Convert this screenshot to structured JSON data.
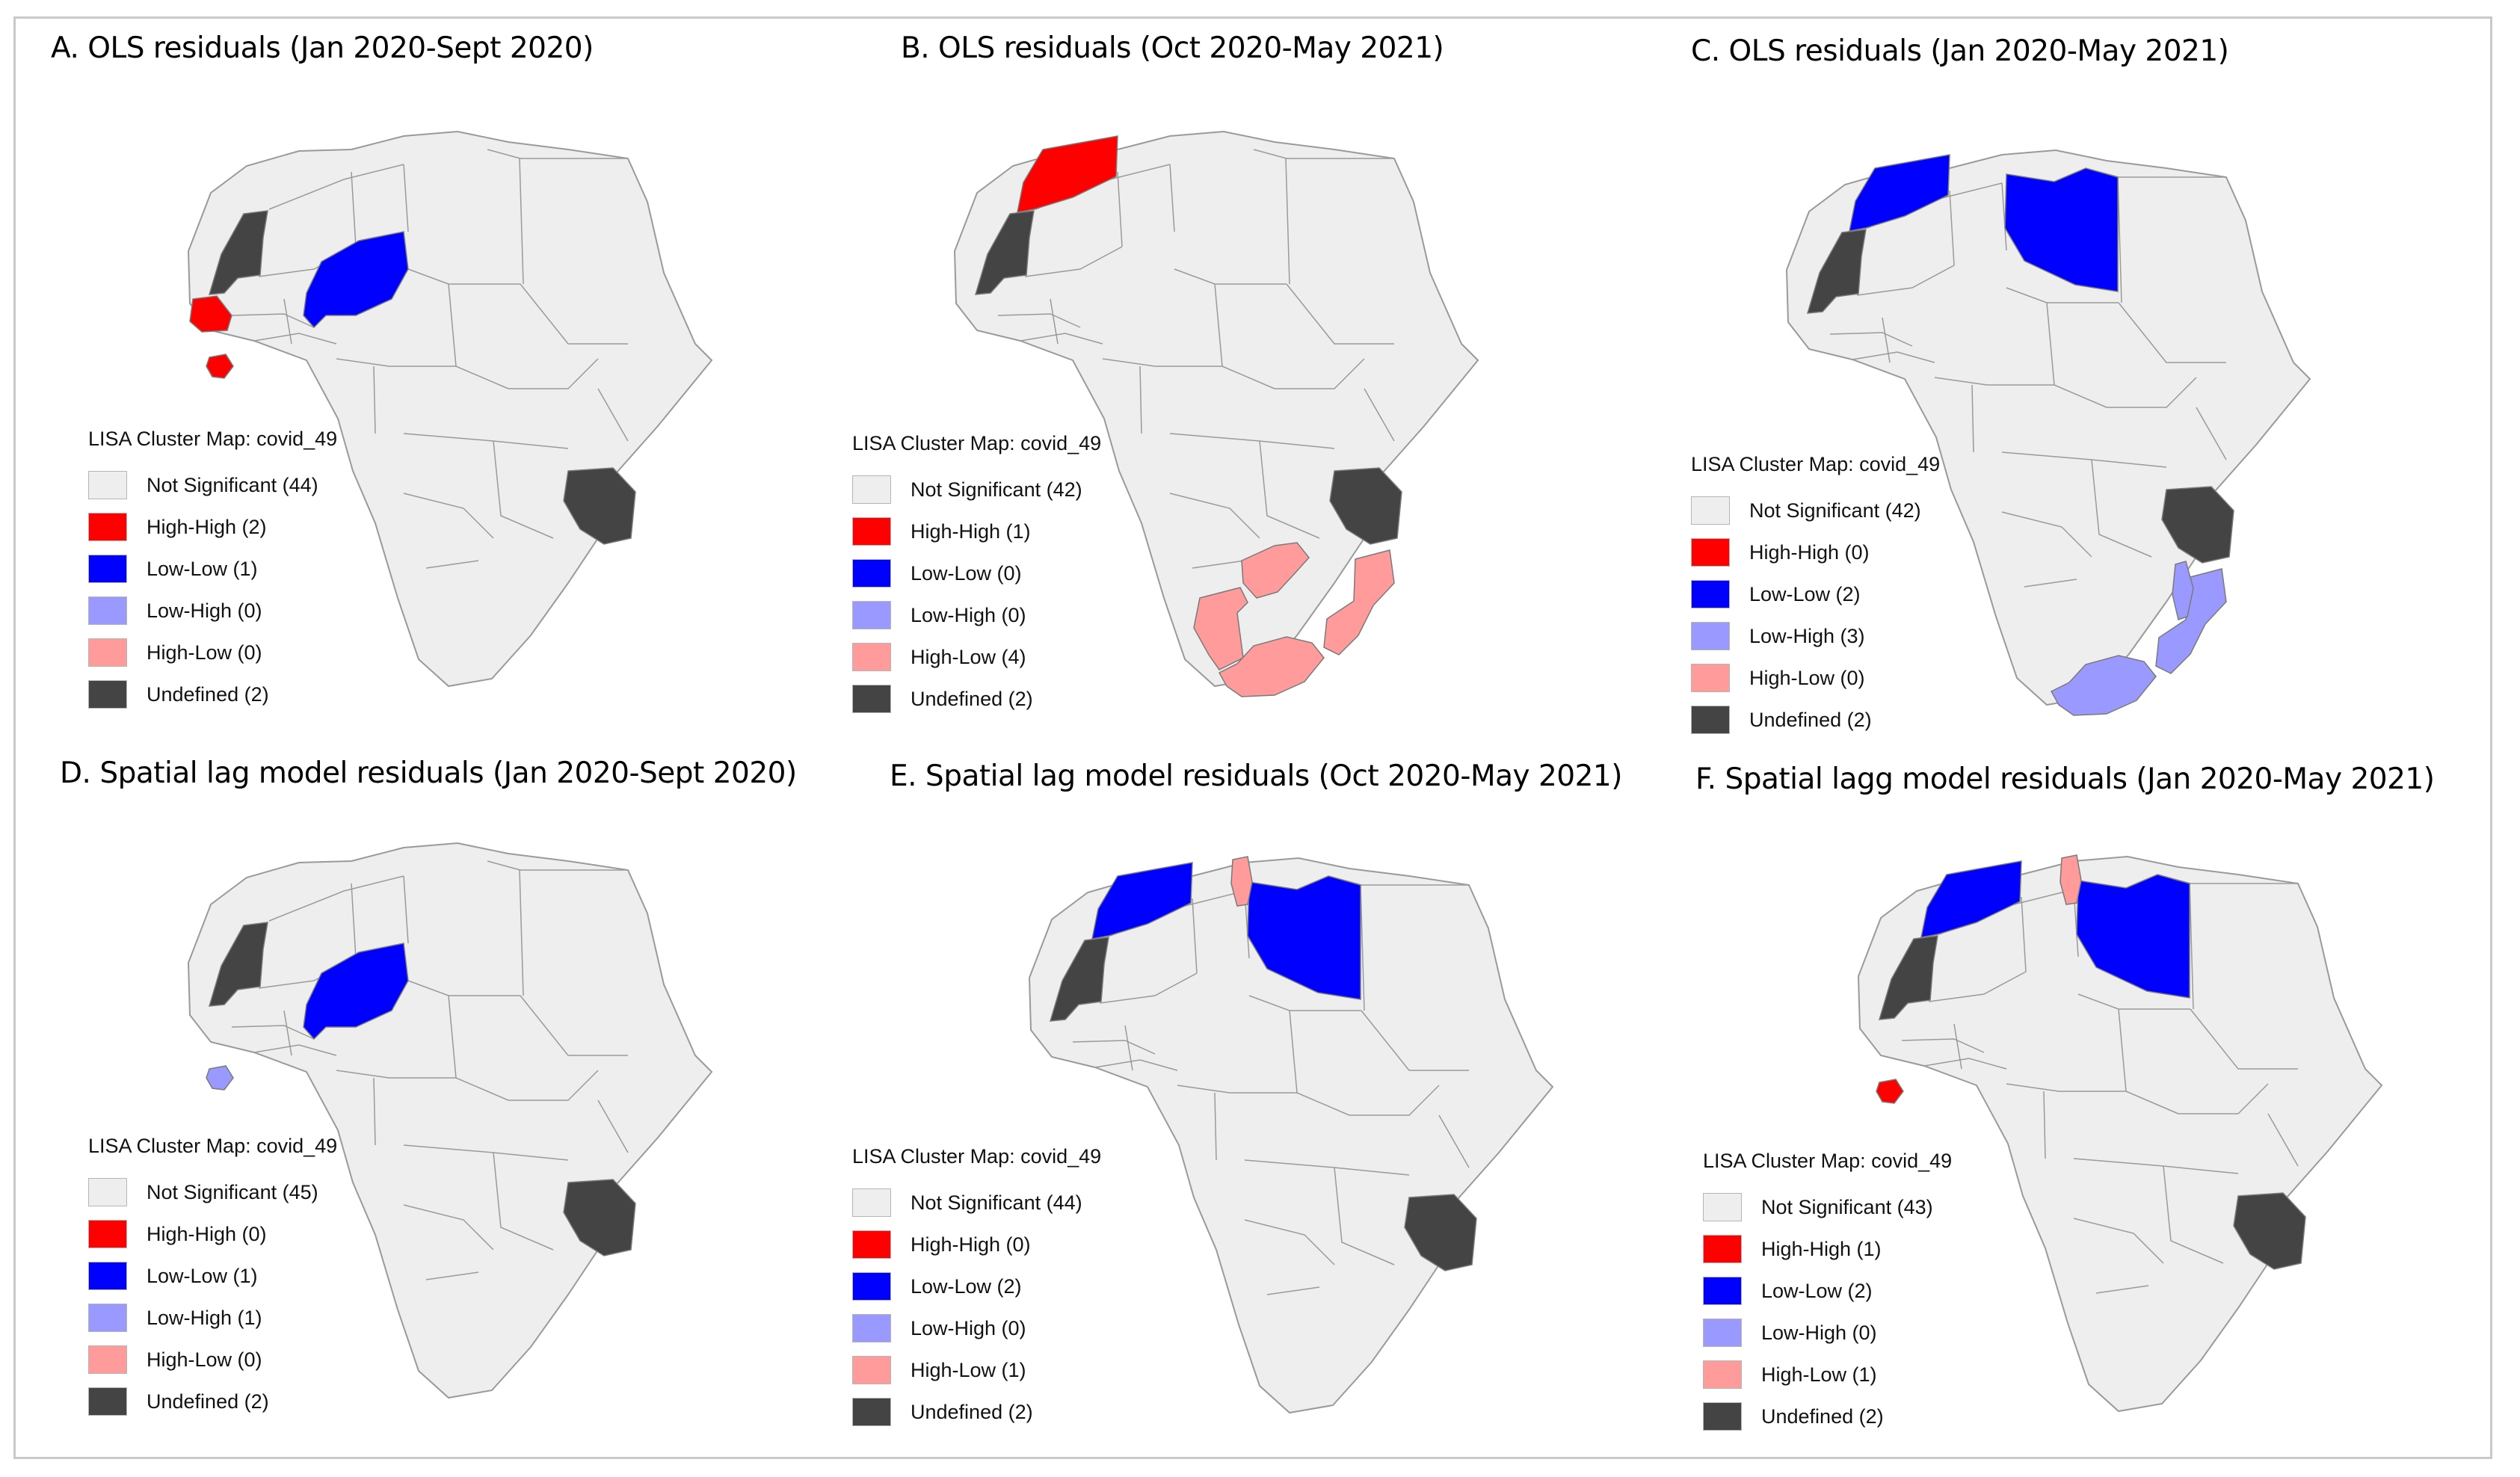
{
  "colors": {
    "not_significant": "#eeeeee",
    "high_high": "#ff0000",
    "low_low": "#0000ff",
    "low_high": "#9999ff",
    "high_low": "#ff9b9b",
    "undefined": "#444444",
    "border": "#9a9a9a"
  },
  "panels": [
    {
      "title": "A. OLS residuals (Jan 2020-Sept 2020)",
      "legend_title": "LISA Cluster Map: covid_49",
      "legend": [
        {
          "label": "Not Significant (44)",
          "category": "not_significant"
        },
        {
          "label": "High-High (2)",
          "category": "high_high"
        },
        {
          "label": "Low-Low (1)",
          "category": "low_low"
        },
        {
          "label": "Low-High (0)",
          "category": "low_high"
        },
        {
          "label": "High-Low (0)",
          "category": "high_low"
        },
        {
          "label": "Undefined (2)",
          "category": "undefined"
        }
      ],
      "regions": [
        {
          "country": "Western Sahara",
          "category": "undefined"
        },
        {
          "country": "Tanzania",
          "category": "undefined"
        },
        {
          "country": "Senegal",
          "category": "high_high"
        },
        {
          "country": "Sierra Leone",
          "category": "high_high"
        },
        {
          "country": "Niger",
          "category": "low_low"
        }
      ]
    },
    {
      "title": "B. OLS residuals (Oct 2020-May 2021)",
      "legend_title": "LISA Cluster Map: covid_49",
      "legend": [
        {
          "label": "Not Significant (42)",
          "category": "not_significant"
        },
        {
          "label": "High-High (1)",
          "category": "high_high"
        },
        {
          "label": "Low-Low (0)",
          "category": "low_low"
        },
        {
          "label": "Low-High (0)",
          "category": "low_high"
        },
        {
          "label": "High-Low (4)",
          "category": "high_low"
        },
        {
          "label": "Undefined (2)",
          "category": "undefined"
        }
      ],
      "regions": [
        {
          "country": "Western Sahara",
          "category": "undefined"
        },
        {
          "country": "Tanzania",
          "category": "undefined"
        },
        {
          "country": "Morocco",
          "category": "high_high"
        },
        {
          "country": "Zambia",
          "category": "high_low"
        },
        {
          "country": "Mozambique",
          "category": "high_low"
        },
        {
          "country": "Namibia",
          "category": "high_low"
        },
        {
          "country": "South Africa",
          "category": "high_low"
        }
      ]
    },
    {
      "title": "C. OLS residuals (Jan 2020-May 2021)",
      "legend_title": "LISA Cluster Map: covid_49",
      "legend": [
        {
          "label": "Not Significant (42)",
          "category": "not_significant"
        },
        {
          "label": "High-High (0)",
          "category": "high_high"
        },
        {
          "label": "Low-Low (2)",
          "category": "low_low"
        },
        {
          "label": "Low-High (3)",
          "category": "low_high"
        },
        {
          "label": "High-Low (0)",
          "category": "high_low"
        },
        {
          "label": "Undefined (2)",
          "category": "undefined"
        }
      ],
      "regions": [
        {
          "country": "Western Sahara",
          "category": "undefined"
        },
        {
          "country": "Tanzania",
          "category": "undefined"
        },
        {
          "country": "Morocco",
          "category": "low_low"
        },
        {
          "country": "Libya",
          "category": "low_low"
        },
        {
          "country": "Mozambique",
          "category": "low_high"
        },
        {
          "country": "Malawi",
          "category": "low_high"
        },
        {
          "country": "South Africa",
          "category": "low_high"
        }
      ]
    },
    {
      "title": "D. Spatial lag model residuals (Jan 2020-Sept 2020)",
      "legend_title": "LISA Cluster Map: covid_49",
      "legend": [
        {
          "label": "Not Significant (45)",
          "category": "not_significant"
        },
        {
          "label": "High-High (0)",
          "category": "high_high"
        },
        {
          "label": "Low-Low (1)",
          "category": "low_low"
        },
        {
          "label": "Low-High (1)",
          "category": "low_high"
        },
        {
          "label": "High-Low (0)",
          "category": "high_low"
        },
        {
          "label": "Undefined (2)",
          "category": "undefined"
        }
      ],
      "regions": [
        {
          "country": "Western Sahara",
          "category": "undefined"
        },
        {
          "country": "Tanzania",
          "category": "undefined"
        },
        {
          "country": "Niger",
          "category": "low_low"
        },
        {
          "country": "Sierra Leone",
          "category": "low_high"
        }
      ]
    },
    {
      "title": "E. Spatial lag model residuals (Oct 2020-May 2021)",
      "legend_title": "LISA Cluster Map: covid_49",
      "legend": [
        {
          "label": "Not Significant (44)",
          "category": "not_significant"
        },
        {
          "label": "High-High (0)",
          "category": "high_high"
        },
        {
          "label": "Low-Low (2)",
          "category": "low_low"
        },
        {
          "label": "Low-High (0)",
          "category": "low_high"
        },
        {
          "label": "High-Low (1)",
          "category": "high_low"
        },
        {
          "label": "Undefined (2)",
          "category": "undefined"
        }
      ],
      "regions": [
        {
          "country": "Western Sahara",
          "category": "undefined"
        },
        {
          "country": "Tanzania",
          "category": "undefined"
        },
        {
          "country": "Morocco",
          "category": "low_low"
        },
        {
          "country": "Libya",
          "category": "low_low"
        },
        {
          "country": "Tunisia",
          "category": "high_low"
        }
      ]
    },
    {
      "title": "F. Spatial lagg model residuals (Jan 2020-May 2021)",
      "legend_title": "LISA Cluster Map: covid_49",
      "legend": [
        {
          "label": "Not Significant (43)",
          "category": "not_significant"
        },
        {
          "label": "High-High (1)",
          "category": "high_high"
        },
        {
          "label": "Low-Low (2)",
          "category": "low_low"
        },
        {
          "label": "Low-High (0)",
          "category": "low_high"
        },
        {
          "label": "High-Low (1)",
          "category": "high_low"
        },
        {
          "label": "Undefined (2)",
          "category": "undefined"
        }
      ],
      "regions": [
        {
          "country": "Western Sahara",
          "category": "undefined"
        },
        {
          "country": "Tanzania",
          "category": "undefined"
        },
        {
          "country": "Morocco",
          "category": "low_low"
        },
        {
          "country": "Libya",
          "category": "low_low"
        },
        {
          "country": "Tunisia",
          "category": "high_low"
        },
        {
          "country": "Sierra Leone",
          "category": "high_high"
        }
      ]
    }
  ]
}
